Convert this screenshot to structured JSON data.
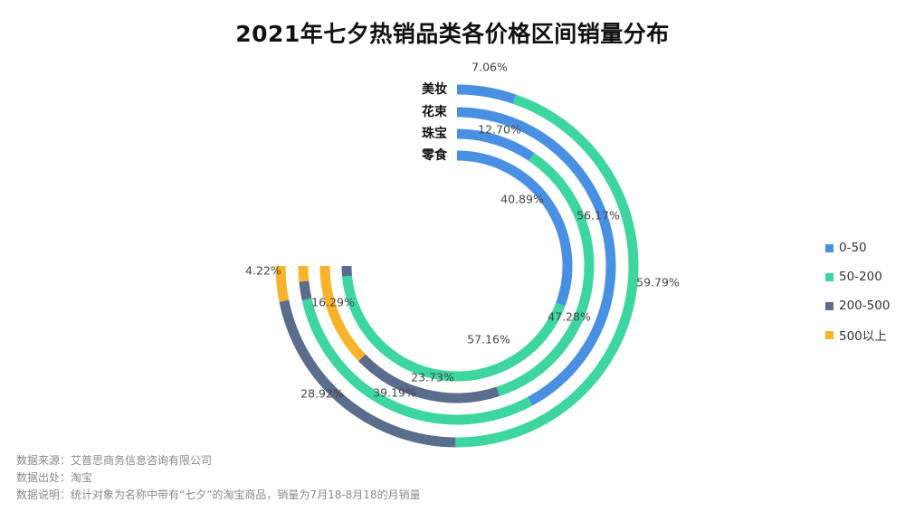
{
  "title": "2021年七夕热销品类各价格区间销量分布",
  "chart_data": {
    "type": "radial-bar",
    "title": "2021年七夕热销品类各价格区间销量分布",
    "categories": [
      "美妆",
      "花束",
      "珠宝",
      "零食"
    ],
    "price_ranges": [
      "0-50",
      "50-200",
      "200-500",
      "500以上"
    ],
    "colors": [
      "#4a90e2",
      "#3ed6a0",
      "#5a6d8c",
      "#f7b32b"
    ],
    "series": [
      {
        "name": "美妆",
        "values": [
          7.06,
          59.79,
          28.92,
          4.22
        ],
        "labels": [
          "7.06%",
          "59.79%",
          "28.92%",
          "4.22%"
        ]
      },
      {
        "name": "花束",
        "values": [
          56.17,
          39.19,
          2.5,
          2.14
        ],
        "labels": [
          "",
          "",
          "",
          ""
        ]
      },
      {
        "name": "珠宝",
        "values": [
          12.7,
          47.28,
          23.73,
          16.29
        ],
        "labels": [
          "12.70%",
          "47.28%",
          "23.73%",
          "16.29%"
        ]
      },
      {
        "name": "零食",
        "values": [
          40.89,
          57.16,
          1.95,
          0
        ],
        "labels": [
          "40.89%",
          "57.16%",
          "",
          ""
        ]
      }
    ],
    "extra_labels": [
      "56.17%",
      "39.19%"
    ],
    "legend": {
      "position": "right",
      "items": [
        "0-50",
        "50-200",
        "200-500",
        "500以上"
      ]
    }
  },
  "footer": {
    "source": "数据来源：艾普思商务信息咨询有限公司",
    "origin": "数据出处：淘宝",
    "note": "数据说明：统计对象为名称中带有“七夕”的淘宝商品，销量为7月18-8月18的月销量"
  }
}
